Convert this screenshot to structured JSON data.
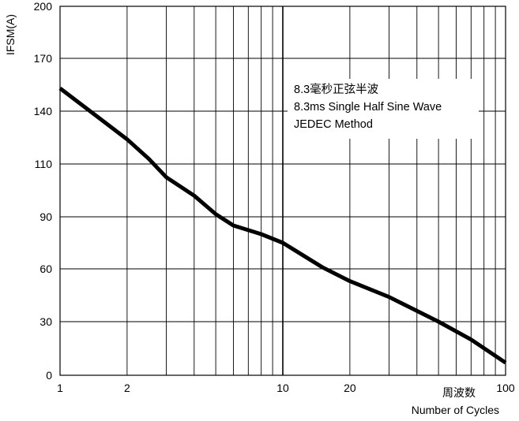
{
  "chart_data": {
    "type": "line",
    "title": "",
    "xlabel_cn": "周波数",
    "xlabel": "Number of Cycles",
    "ylabel": "IFSM(A)",
    "x_scale": "log",
    "xlim": [
      1,
      100
    ],
    "ylim": [
      0,
      200
    ],
    "x_ticks": [
      {
        "value": 1,
        "label": "1"
      },
      {
        "value": 2,
        "label": "2"
      },
      {
        "value": 10,
        "label": "10"
      },
      {
        "value": 20,
        "label": "20"
      },
      {
        "value": 100,
        "label": "100"
      }
    ],
    "y_ticks": [
      0,
      30,
      60,
      90,
      110,
      140,
      170,
      200
    ],
    "grid": true,
    "annotation": [
      "8.3毫秒正弦半波",
      "8.3ms Single Half Sine Wave",
      "JEDEC Method"
    ],
    "series": [
      {
        "x": [
          1,
          1.5,
          2,
          2.5,
          3,
          4,
          5,
          6,
          8,
          10,
          15,
          20,
          30,
          50,
          70,
          100
        ],
        "y": [
          153,
          136,
          124,
          113,
          105,
          98,
          91,
          85,
          80,
          75,
          61,
          53,
          44,
          30,
          20,
          7
        ],
        "color": "#000000"
      }
    ]
  }
}
